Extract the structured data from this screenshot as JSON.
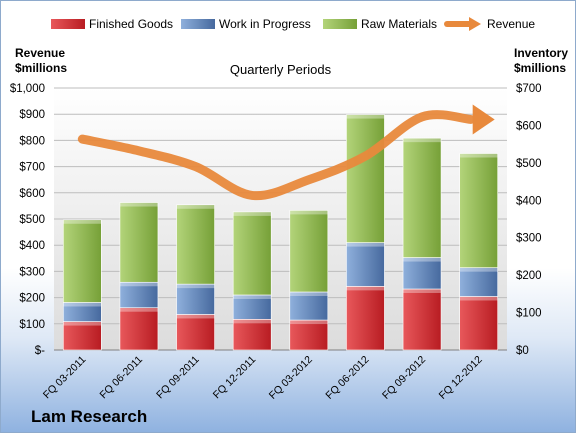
{
  "company": "Lam Research",
  "chart_data": {
    "type": "bar",
    "title": "Quarterly Periods",
    "stacked": true,
    "categories": [
      "FQ 03-2011",
      "FQ 06-2011",
      "FQ 09-2011",
      "FQ 12-2011",
      "FQ 03-2012",
      "FQ 06-2012",
      "FQ 09-2012",
      "FQ 12-2012"
    ],
    "series": [
      {
        "name": "Finished Goods",
        "axis": "right",
        "color": "#c8262b",
        "values": [
          76,
          113,
          95,
          82,
          80,
          170,
          163,
          143
        ]
      },
      {
        "name": "Work in Progress",
        "axis": "right",
        "color": "#5b82b9",
        "values": [
          51,
          68,
          81,
          65,
          75,
          117,
          84,
          77
        ]
      },
      {
        "name": "Raw Materials",
        "axis": "right",
        "color": "#8cb44a",
        "values": [
          221,
          213,
          212,
          222,
          218,
          342,
          319,
          305
        ]
      },
      {
        "name": "Revenue",
        "axis": "left",
        "type": "line",
        "color": "#e8893c",
        "values": [
          805,
          760,
          700,
          590,
          650,
          740,
          890,
          880
        ]
      }
    ],
    "left_axis": {
      "label_line1": "Revenue",
      "label_line2": "$millions",
      "ylim": [
        0,
        1000
      ],
      "ticks": [
        "$-",
        "$100",
        "$200",
        "$300",
        "$400",
        "$500",
        "$600",
        "$700",
        "$800",
        "$900",
        "$1,000"
      ]
    },
    "right_axis": {
      "label_line1": "Inventory",
      "label_line2": "$millions",
      "ylim": [
        0,
        700
      ],
      "ticks": [
        "$0",
        "$100",
        "$200",
        "$300",
        "$400",
        "$500",
        "$600",
        "$700"
      ]
    },
    "legend_position": "top",
    "grid": true
  }
}
